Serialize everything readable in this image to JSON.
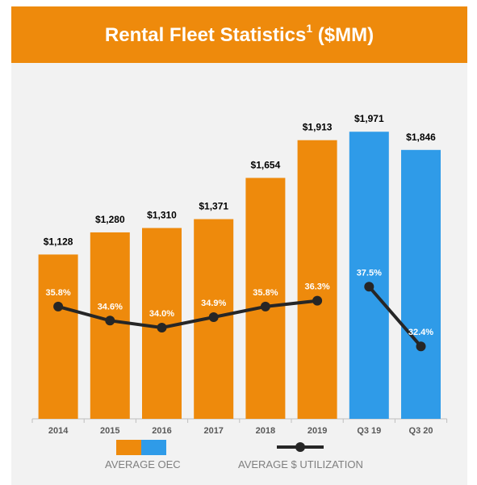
{
  "header": {
    "title_main": "Rental Fleet Statistics",
    "title_sup": "1",
    "title_unit": " ($MM)"
  },
  "colors": {
    "header_bg": "#ee8a0c",
    "bar_annual": "#ee8a0c",
    "bar_quarterly": "#2f9be8",
    "line": "#262626"
  },
  "legend": {
    "oec_label": "AVERAGE OEC",
    "utilization_label": "AVERAGE $ UTILIZATION"
  },
  "chart_data": {
    "type": "bar",
    "title": "Rental Fleet Statistics1 ($MM)",
    "categories": [
      "2014",
      "2015",
      "2016",
      "2017",
      "2018",
      "2019",
      "Q3 19",
      "Q3 20"
    ],
    "series": [
      {
        "name": "AVERAGE OEC",
        "type": "bar",
        "values": [
          1128,
          1280,
          1310,
          1371,
          1654,
          1913,
          1971,
          1846
        ],
        "labels": [
          "$1,128",
          "$1,280",
          "$1,310",
          "$1,371",
          "$1,654",
          "$1,913",
          "$1,971",
          "$1,846"
        ]
      },
      {
        "name": "AVERAGE $ UTILIZATION",
        "type": "line",
        "values": [
          35.8,
          34.6,
          34.0,
          34.9,
          35.8,
          36.3,
          37.5,
          32.4
        ],
        "labels": [
          "35.8%",
          "34.6%",
          "34.0%",
          "34.9%",
          "35.8%",
          "36.3%",
          "37.5%",
          "32.4%"
        ],
        "segments": [
          [
            0,
            5
          ],
          [
            6,
            7
          ]
        ]
      }
    ],
    "ylim": [
      0,
      2100
    ],
    "legend_position": "bottom",
    "grid": false
  }
}
